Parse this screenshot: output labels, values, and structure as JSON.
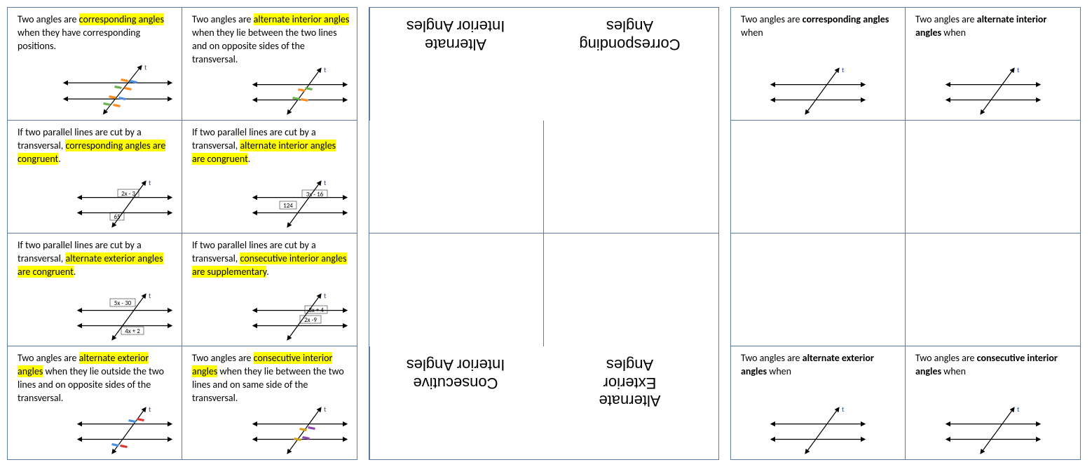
{
  "panel1": {
    "cells": [
      {
        "pre": "Two angles are ",
        "hl": "corresponding angles",
        "post": " when they have corresponding positions.",
        "fig": "colored"
      },
      {
        "pre": "Two angles are ",
        "hl": "alternate interior angles",
        "post": " when they lie between the two lines and on opposite sides of the transversal.",
        "fig": "altint"
      },
      {
        "pre": "If two parallel lines are cut by a transversal, ",
        "hl": "corresponding angles are congruent",
        "post": ".",
        "fig": "corrnum",
        "labels": [
          "2x - 3",
          "65"
        ]
      },
      {
        "pre": "If two parallel lines are cut by a transversal, ",
        "hl": "alternate interior angles are congruent",
        "post": ".",
        "fig": "altintnum",
        "labels": [
          "3x - 16",
          "124"
        ]
      },
      {
        "pre": "If two parallel lines are cut by a transversal, ",
        "hl": "alternate exterior angles are congruent",
        "post": ".",
        "fig": "altextnum",
        "labels": [
          "5x - 30",
          "4x + 2"
        ]
      },
      {
        "pre": "If two parallel lines are cut by a transversal, ",
        "hl": "consecutive interior angles are supplementary",
        "post": ".",
        "fig": "consintnum",
        "labels": [
          "3x + 4",
          "2x -9"
        ]
      },
      {
        "pre": "Two angles are ",
        "hl": "alternate exterior angles",
        "post": " when they lie outside the two lines and on opposite sides of the transversal.",
        "fig": "altext"
      },
      {
        "pre": "Two angles are ",
        "hl": "consecutive interior angles",
        "post": " when they lie between the two lines and on same side of the transversal.",
        "fig": "consint"
      }
    ]
  },
  "panel2": {
    "t1a": "Corresponding",
    "t1b": "Angles",
    "t2a": "Alternate",
    "t2b": "Interior Angles",
    "t3a": "Alternate",
    "t3b": "Exterior",
    "t3c": "Angles",
    "t4a": "Consecutive",
    "t4b": "Interior Angles"
  },
  "panel3": {
    "c1": {
      "pre": "Two angles are ",
      "bold": "corresponding angles",
      "post": " when"
    },
    "c2": {
      "pre": "Two angles are ",
      "bold": "alternate interior angles",
      "post": " when"
    },
    "c7": {
      "pre": "Two angles are ",
      "bold": "alternate exterior angles",
      "post": " when"
    },
    "c8": {
      "pre": "Two angles are ",
      "bold": "consecutive interior angles",
      "post": " when"
    }
  },
  "colors": {
    "border": "#5a7aa8",
    "hl": "#ffff00",
    "p_orange": "#ff8c1a",
    "p_blue": "#4a90e2",
    "p_green": "#6ab04c",
    "p_red": "#e03131",
    "p_purple": "#8e44ad",
    "p_gold": "#d4a017"
  }
}
